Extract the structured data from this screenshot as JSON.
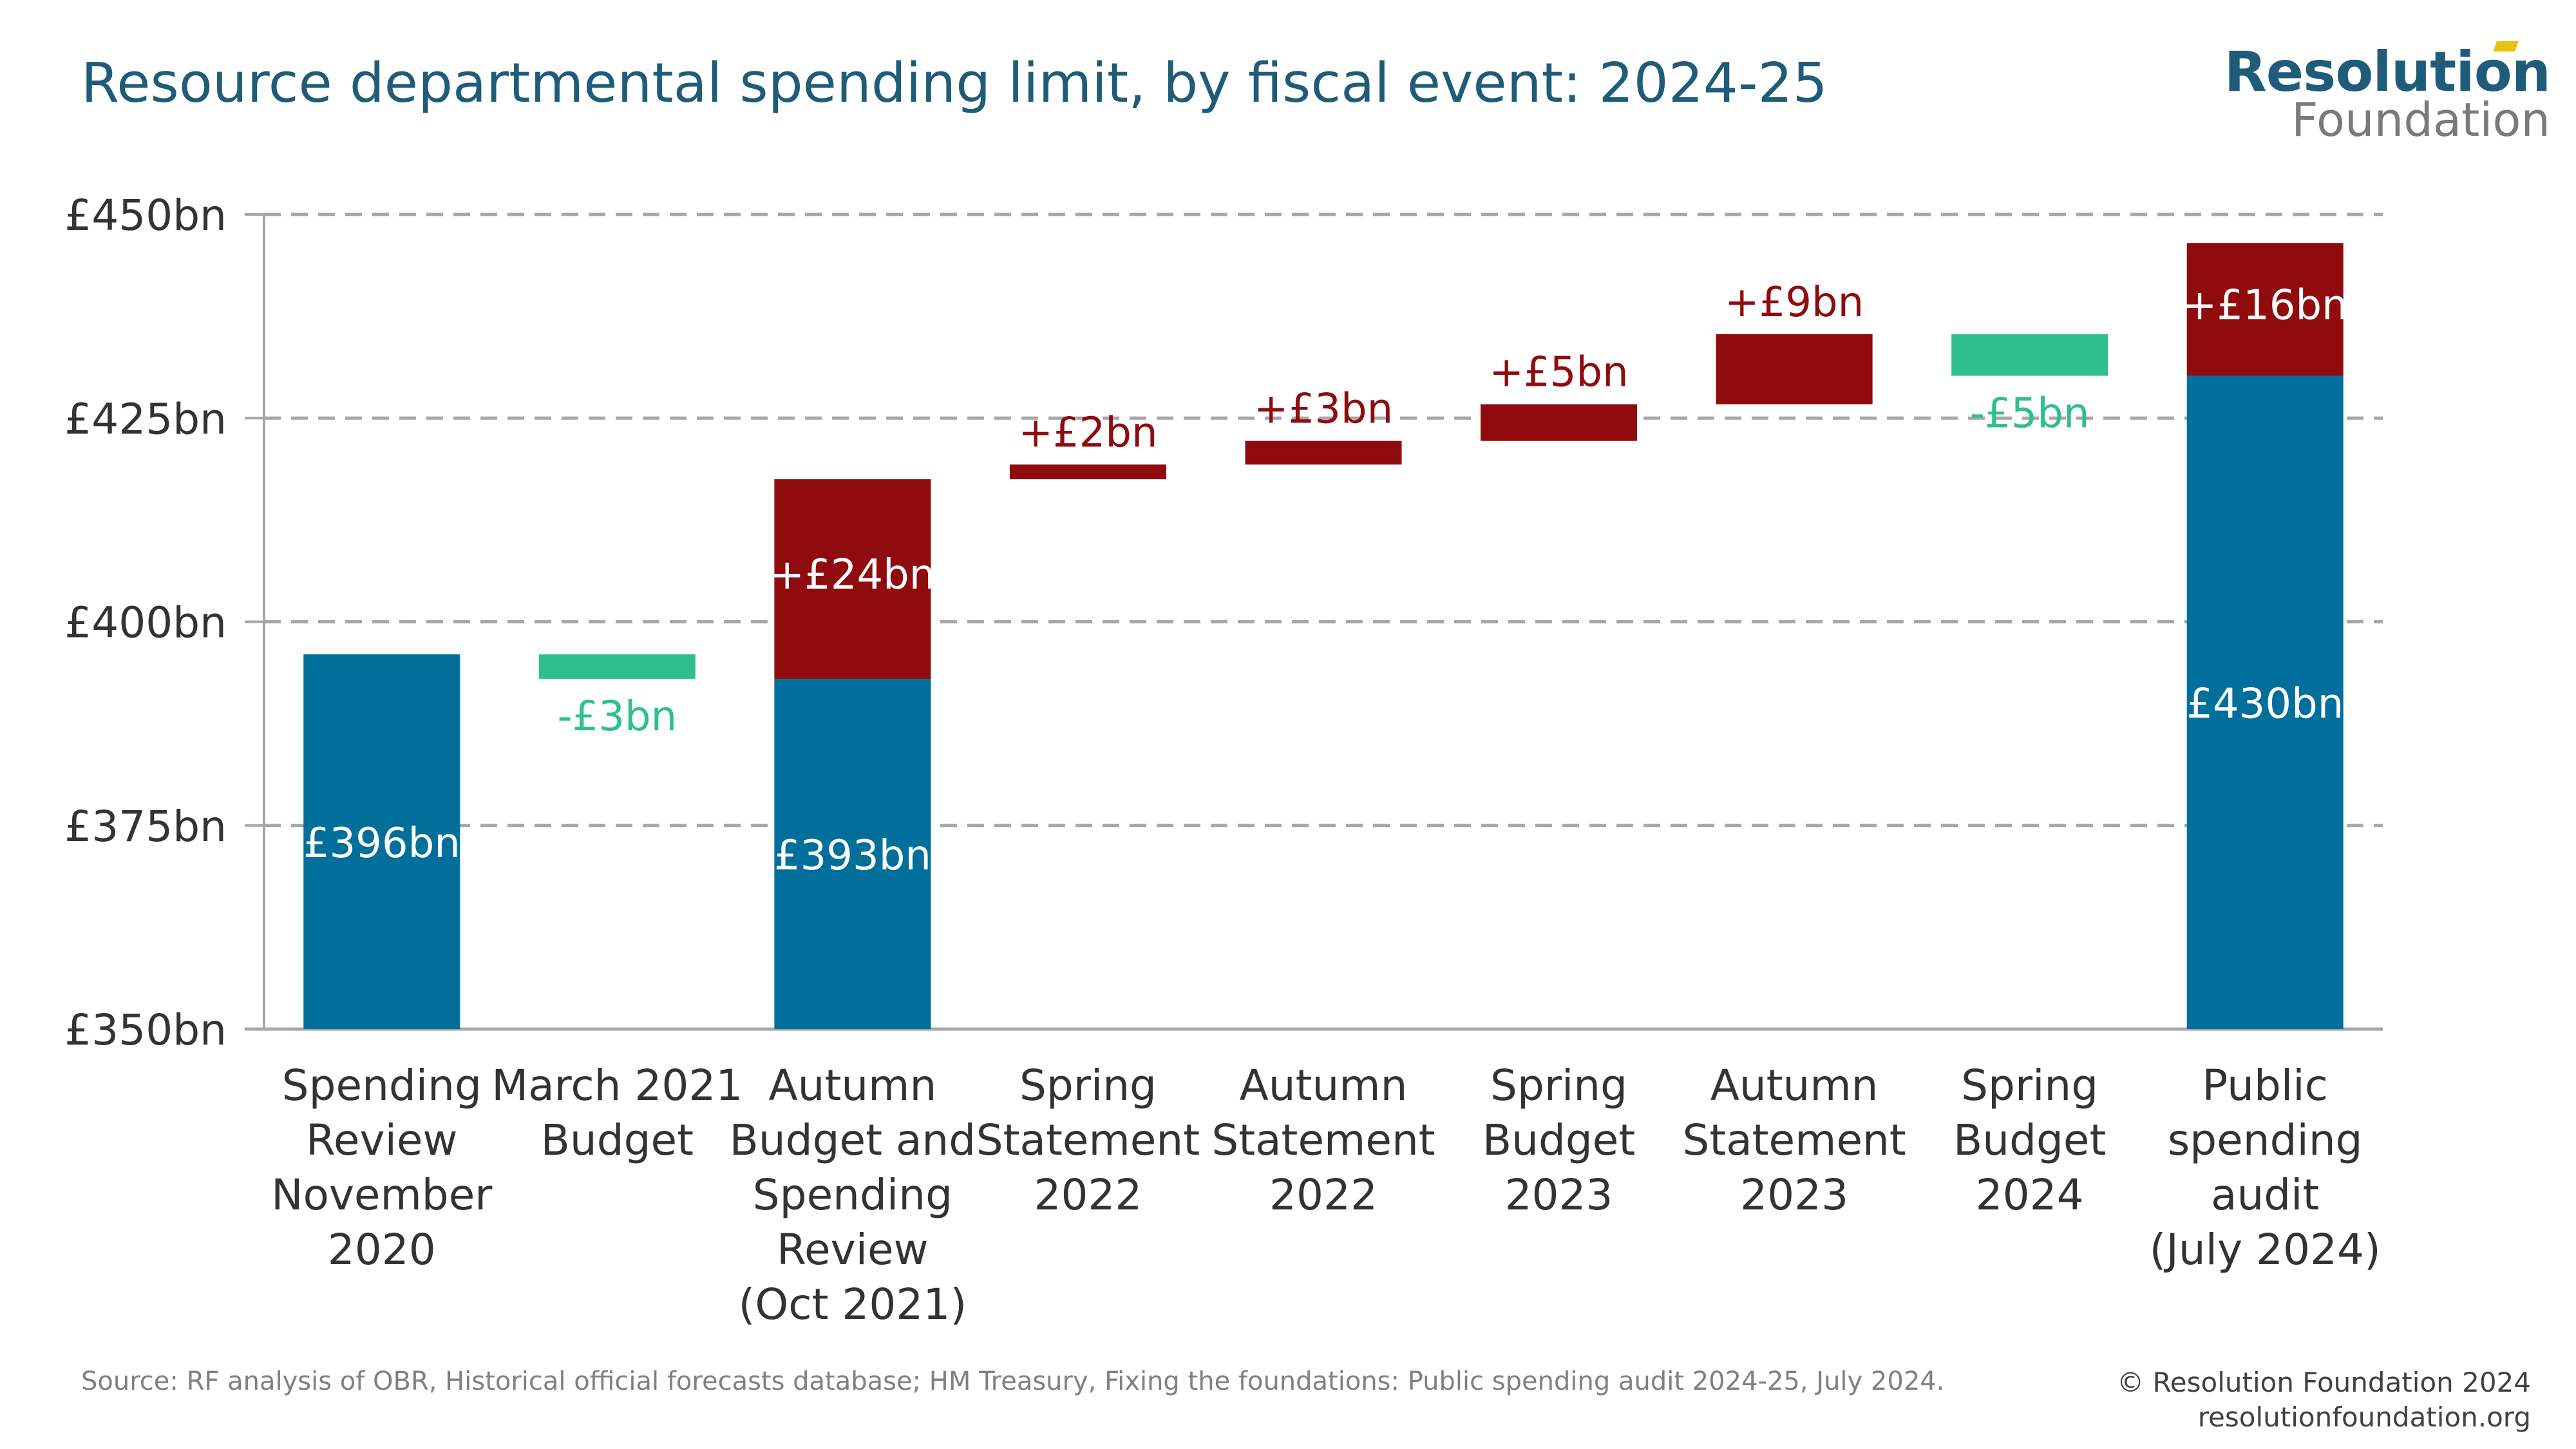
{
  "title": "Resource departmental spending limit, by fiscal event: 2024-25",
  "logo": {
    "line1": "Resolution",
    "line2": "Foundation"
  },
  "footer": {
    "source": "Source: RF analysis of OBR, Historical official forecasts database; HM Treasury, Fixing the foundations: Public spending audit 2024-25, July 2024.",
    "copyright": "© Resolution Foundation 2024",
    "website": "resolutionfoundation.org"
  },
  "colors": {
    "total": "#006f9b",
    "increase": "#8f0b0e",
    "decrease": "#2fbf8f",
    "grid": "#a6a6a6",
    "text": "#333333"
  },
  "chart_data": {
    "type": "bar",
    "subtype": "waterfall",
    "ylim": [
      350,
      450
    ],
    "yticks": [
      350,
      375,
      400,
      425,
      450
    ],
    "ytick_labels": [
      "£350bn",
      "£375bn",
      "£400bn",
      "£425bn",
      "£450bn"
    ],
    "grid": true,
    "categories": [
      [
        "Spending",
        "Review",
        "November",
        "2020"
      ],
      [
        "March 2021",
        "Budget"
      ],
      [
        "Autumn",
        "Budget and",
        "Spending",
        "Review",
        "(Oct 2021)"
      ],
      [
        "Spring",
        "Statement",
        "2022"
      ],
      [
        "Autumn",
        "Statement",
        "2022"
      ],
      [
        "Spring",
        "Budget",
        "2023"
      ],
      [
        "Autumn",
        "Statement",
        "2023"
      ],
      [
        "Spring",
        "Budget",
        "2024"
      ],
      [
        "Public",
        "spending",
        "audit",
        "(July 2024)"
      ]
    ],
    "bars": [
      {
        "total": 396,
        "total_label": "£396bn"
      },
      {
        "start": 396,
        "end": 393,
        "label": "-£3bn"
      },
      {
        "total": 393,
        "total_label": "£393bn",
        "start": 393,
        "end": 417.5,
        "label": "+£24bn"
      },
      {
        "start": 417.5,
        "end": 419.3,
        "label": "+£2bn"
      },
      {
        "start": 419.3,
        "end": 422.2,
        "label": "+£3bn"
      },
      {
        "start": 422.2,
        "end": 426.7,
        "label": "+£5bn"
      },
      {
        "start": 426.7,
        "end": 435.3,
        "label": "+£9bn"
      },
      {
        "start": 435.3,
        "end": 430.2,
        "label": "-£5bn"
      },
      {
        "total": 430.2,
        "total_label": "£430bn",
        "start": 430.2,
        "end": 446.5,
        "label": "+£16bn"
      }
    ]
  }
}
